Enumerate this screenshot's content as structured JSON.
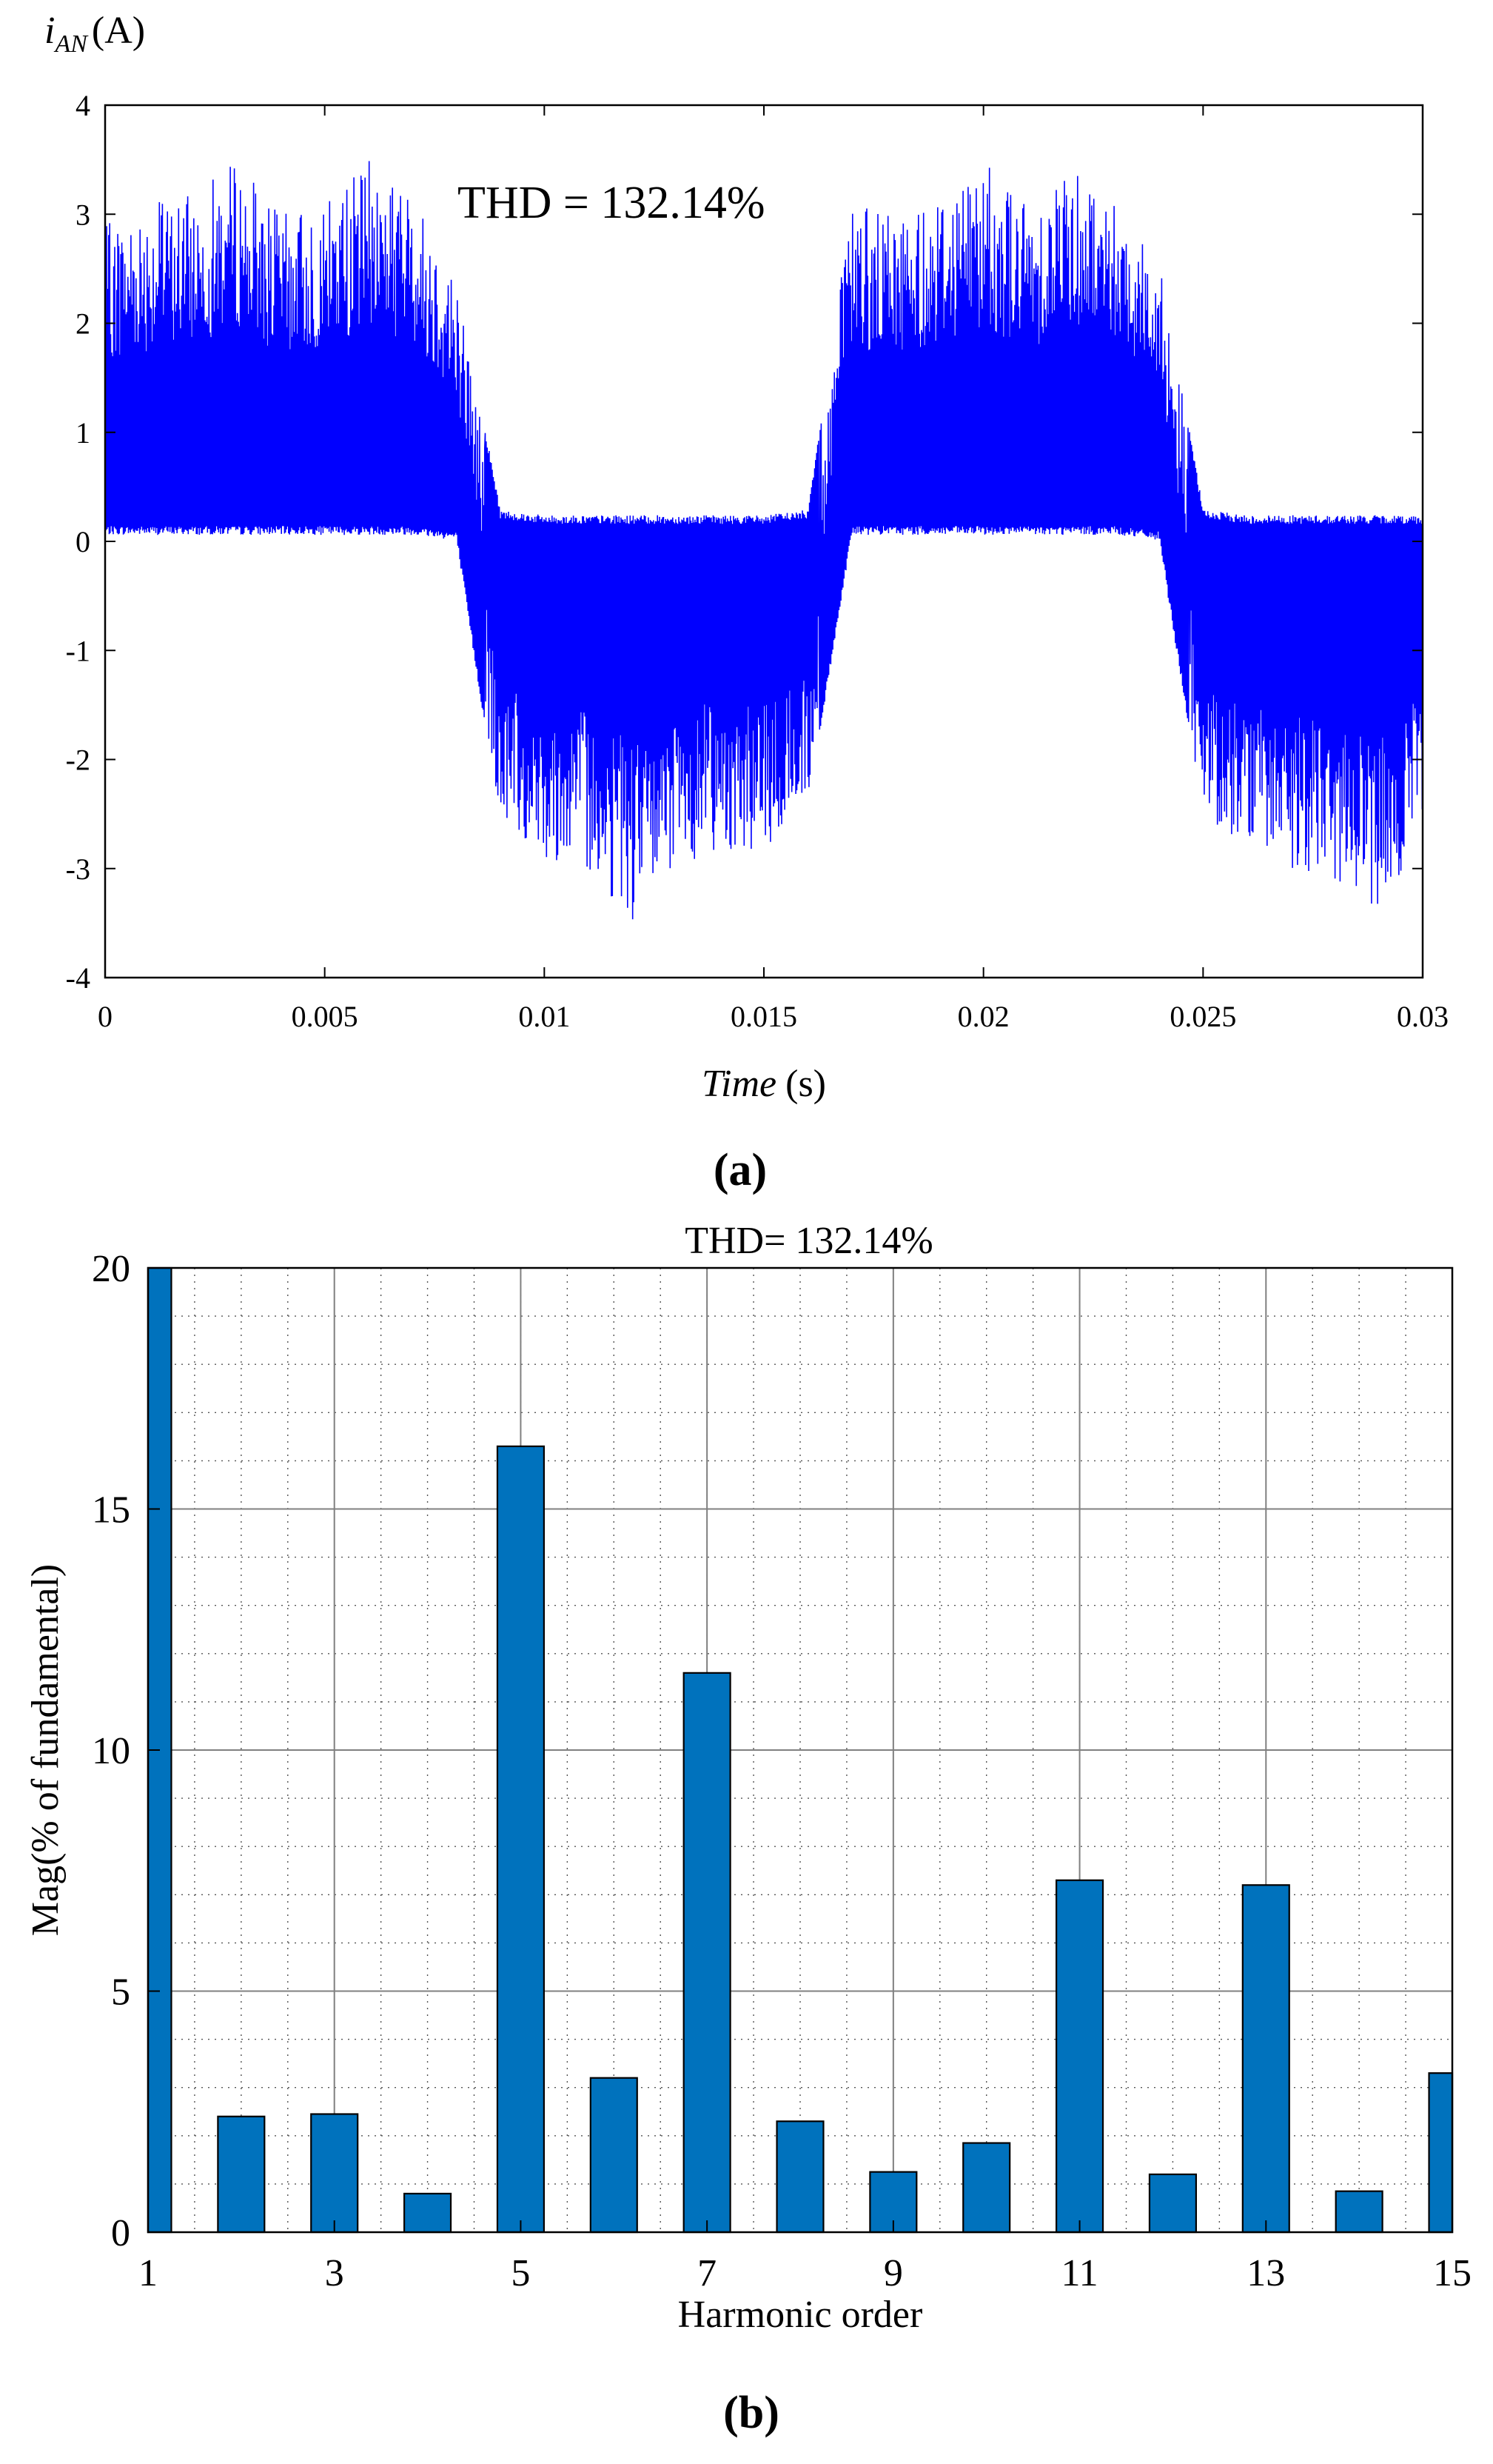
{
  "panel_a": {
    "caption": "(a)",
    "ylabel_main": "i",
    "ylabel_sub": "AN",
    "ylabel_unit": "(A)",
    "xlabel_italic": "Time",
    "xlabel_unit": "(s)",
    "annotation": "THD = 132.14%"
  },
  "panel_b": {
    "caption": "(b)",
    "title": "THD= 132.14%",
    "xlabel": "Harmonic order",
    "ylabel": "Mag(% of fundamental)"
  },
  "colors": {
    "signal": "#0000ff",
    "bar": "#0072bd",
    "bar_edge": "#000000",
    "grid": "#808080"
  },
  "chart_data": [
    {
      "type": "line",
      "description_of_shape": "PWM-chopped quasi-square-wave current; positive half-cycles 0-0.008 s and 0.016-0.024 s, negative half-cycles 0.008-0.016 s and 0.024-0.03 s",
      "annotation": "THD = 132.14%",
      "xlabel": "Time (s)",
      "ylabel": "iAN (A)",
      "xlim": [
        0,
        0.03
      ],
      "ylim": [
        -4,
        4
      ],
      "xticks": [
        0,
        0.005,
        0.01,
        0.015,
        0.02,
        0.025,
        0.03
      ],
      "xtick_labels": [
        "0",
        "0.005",
        "0.01",
        "0.015",
        "0.02",
        "0.025",
        "0.03"
      ],
      "yticks": [
        -4,
        -3,
        -2,
        -1,
        0,
        1,
        2,
        3,
        4
      ],
      "ytick_labels": [
        "-4",
        "-3",
        "-2",
        "-1",
        "0",
        "1",
        "2",
        "3",
        "4"
      ],
      "envelope": {
        "x": [
          0,
          0.001,
          0.002,
          0.003,
          0.004,
          0.005,
          0.006,
          0.007,
          0.008,
          0.009,
          0.01,
          0.011,
          0.012,
          0.013,
          0.014,
          0.015,
          0.016,
          0.017,
          0.018,
          0.019,
          0.02,
          0.021,
          0.022,
          0.023,
          0.024,
          0.025,
          0.026,
          0.027,
          0.028,
          0.029,
          0.03
        ],
        "upper": [
          2.9,
          3.1,
          3.2,
          3.5,
          3.0,
          3.1,
          3.5,
          3.2,
          2.4,
          0.25,
          0.2,
          0.2,
          0.2,
          0.2,
          0.2,
          0.2,
          0.25,
          3.1,
          3.0,
          3.2,
          3.5,
          3.1,
          3.5,
          3.2,
          2.6,
          0.25,
          0.2,
          0.2,
          0.2,
          0.2,
          0.2
        ],
        "lower": [
          0.1,
          0.1,
          0.1,
          0.1,
          0.1,
          0.1,
          0.1,
          0.1,
          0.05,
          -2.6,
          -2.9,
          -3.0,
          -3.5,
          -3.0,
          -2.8,
          -2.9,
          -2.4,
          0.1,
          0.1,
          0.1,
          0.1,
          0.1,
          0.1,
          0.1,
          0.05,
          -2.5,
          -2.8,
          -3.0,
          -3.1,
          -3.5,
          -2.6
        ]
      },
      "grid": false
    },
    {
      "type": "bar",
      "title": "THD= 132.14%",
      "xlabel": "Harmonic order",
      "ylabel": "Mag(% of fundamental)",
      "xlim": [
        1,
        15
      ],
      "ylim": [
        0,
        20
      ],
      "xticks": [
        1,
        3,
        5,
        7,
        9,
        11,
        13,
        15
      ],
      "yticks": [
        0,
        5,
        10,
        15,
        20
      ],
      "categories": [
        1,
        2,
        3,
        4,
        5,
        6,
        7,
        8,
        9,
        10,
        11,
        12,
        13,
        14,
        15
      ],
      "values": [
        20,
        2.4,
        2.45,
        0.8,
        16.3,
        3.2,
        11.6,
        2.3,
        1.25,
        1.85,
        7.3,
        1.2,
        7.2,
        0.85,
        3.3
      ],
      "clipped_at_ylim": [
        1
      ],
      "grid": true
    }
  ]
}
